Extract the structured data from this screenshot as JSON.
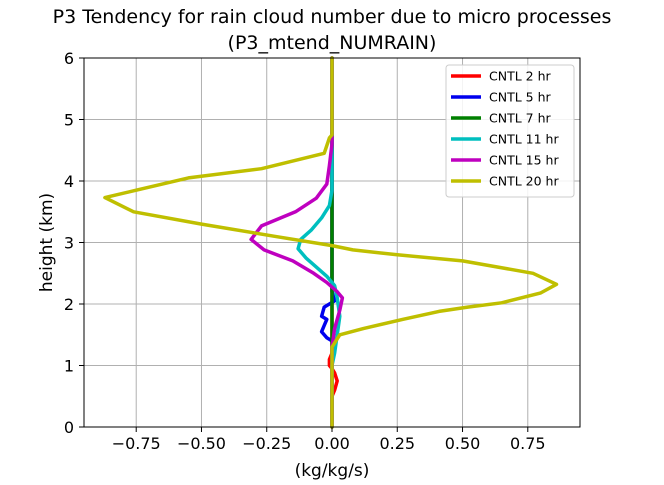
{
  "chart_data": {
    "type": "line",
    "title": "P3 Tendency for rain cloud number due to micro processes",
    "subtitle": "(P3_mtend_NUMRAIN)",
    "xlabel": "(kg/kg/s)",
    "ylabel": "height (km)",
    "xlim": [
      -0.95,
      0.95
    ],
    "ylim": [
      0,
      6
    ],
    "xticks": [
      -0.75,
      -0.5,
      -0.25,
      0.0,
      0.25,
      0.5,
      0.75
    ],
    "xtick_labels": [
      "−0.75",
      "−0.50",
      "−0.25",
      "0.00",
      "0.25",
      "0.50",
      "0.75"
    ],
    "yticks": [
      0,
      1,
      2,
      3,
      4,
      5,
      6
    ],
    "ytick_labels": [
      "0",
      "1",
      "2",
      "3",
      "4",
      "5",
      "6"
    ],
    "grid": true,
    "legend_position": "upper-right",
    "series": [
      {
        "name": "CNTL 2 hr",
        "color": "#ff0000",
        "x": [
          0,
          0,
          0.01,
          0.02,
          0.01,
          0,
          -0.01,
          -0.01,
          0,
          0,
          0,
          0
        ],
        "y": [
          0,
          0.5,
          0.6,
          0.75,
          0.88,
          0.95,
          1.0,
          1.1,
          1.2,
          2.0,
          4.0,
          6.0
        ]
      },
      {
        "name": "CNTL 5 hr",
        "color": "#0000ee",
        "x": [
          0,
          0,
          0.01,
          0,
          -0.02,
          -0.04,
          -0.03,
          -0.02,
          -0.04,
          -0.03,
          -0.01,
          0.01,
          0,
          0,
          0
        ],
        "y": [
          0,
          1.2,
          1.3,
          1.4,
          1.45,
          1.55,
          1.65,
          1.75,
          1.8,
          1.95,
          2.0,
          2.05,
          2.2,
          4.0,
          6.0
        ]
      },
      {
        "name": "CNTL 7 hr",
        "color": "#008000",
        "x": [
          0,
          0,
          0
        ],
        "y": [
          0,
          3.0,
          6.0
        ]
      },
      {
        "name": "CNTL 11 hr",
        "color": "#00bfbf",
        "x": [
          0,
          0,
          0.01,
          0.02,
          0.03,
          0.02,
          0.01,
          -0.02,
          -0.06,
          -0.1,
          -0.13,
          -0.12,
          -0.08,
          -0.04,
          -0.01,
          0,
          0,
          0
        ],
        "y": [
          0,
          1.0,
          1.2,
          1.5,
          1.8,
          2.1,
          2.3,
          2.45,
          2.6,
          2.75,
          2.9,
          3.05,
          3.2,
          3.4,
          3.6,
          3.85,
          4.0,
          6.0
        ]
      },
      {
        "name": "CNTL 15 hr",
        "color": "#bf00bf",
        "x": [
          0,
          0,
          0.01,
          0.03,
          0.04,
          0.02,
          -0.02,
          -0.07,
          -0.15,
          -0.26,
          -0.31,
          -0.27,
          -0.14,
          -0.06,
          -0.02,
          -0.01,
          0,
          0,
          0,
          0
        ],
        "y": [
          0,
          1.3,
          1.6,
          1.9,
          2.1,
          2.2,
          2.35,
          2.5,
          2.7,
          2.88,
          3.05,
          3.27,
          3.5,
          3.72,
          3.95,
          4.25,
          4.6,
          4.85,
          5.0,
          6.0
        ]
      },
      {
        "name": "CNTL 20 hr",
        "color": "#bfbf00",
        "x": [
          0,
          0,
          0,
          0.03,
          0.12,
          0.27,
          0.41,
          0.52,
          0.65,
          0.8,
          0.86,
          0.77,
          0.5,
          0.25,
          0.08,
          0,
          -0.22,
          -0.5,
          -0.76,
          -0.87,
          -0.75,
          -0.55,
          -0.27,
          -0.03,
          -0.01,
          0,
          0
        ],
        "y": [
          0,
          1.0,
          1.3,
          1.5,
          1.6,
          1.75,
          1.88,
          1.95,
          2.02,
          2.18,
          2.32,
          2.5,
          2.7,
          2.8,
          2.88,
          2.95,
          3.1,
          3.3,
          3.5,
          3.73,
          3.85,
          4.05,
          4.2,
          4.45,
          4.7,
          4.75,
          6.0
        ]
      }
    ]
  }
}
